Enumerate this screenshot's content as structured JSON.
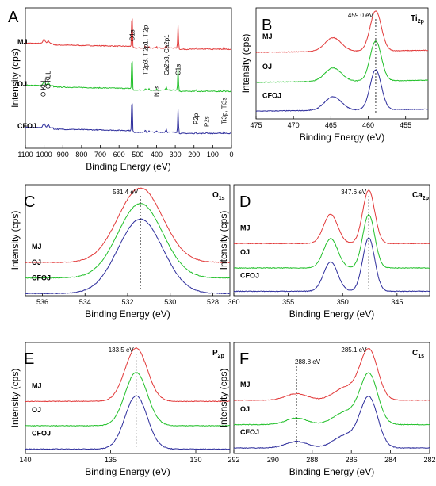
{
  "colors": {
    "MJ": "#e23a3a",
    "OJ": "#22c02a",
    "CFOJ": "#2d2d9c"
  },
  "chart_data": [
    {
      "type": "line",
      "panel": "A",
      "xlabel": "Binding Energy (eV)",
      "ylabel": "Intensity (cps)",
      "xlim": [
        1100,
        0
      ],
      "xticks": [
        "1100",
        "1000",
        "900",
        "800",
        "700",
        "600",
        "500",
        "400",
        "300",
        "200",
        "100",
        "0"
      ],
      "xtick_values": [
        1100,
        1000,
        900,
        800,
        700,
        600,
        500,
        400,
        300,
        200,
        100,
        0
      ],
      "series_labels": [
        "MJ",
        "OJ",
        "CFOJ"
      ],
      "annotations": [
        {
          "text": "O KLL",
          "x": 1005
        },
        {
          "text": "O KLL",
          "x": 980
        },
        {
          "text": "O1s",
          "x": 531
        },
        {
          "text": "Ti2p3, Ti2p1, Ti2p",
          "x": 459
        },
        {
          "text": "N1s",
          "x": 400
        },
        {
          "text": "Ca2p3, Ca2p1",
          "x": 347
        },
        {
          "text": "C1s",
          "x": 285
        },
        {
          "text": "P2p",
          "x": 190
        },
        {
          "text": "P2s",
          "x": 133
        },
        {
          "text": "Ti3p, Ti3s",
          "x": 40
        }
      ]
    },
    {
      "type": "line",
      "panel": "B",
      "element_label": {
        "base": "Ti",
        "sub": "2p"
      },
      "xlabel": "Binding Energy (eV)",
      "ylabel": "Intensity (cps)",
      "xlim": [
        475,
        452
      ],
      "xticks": [
        "475",
        "470",
        "465",
        "460",
        "455"
      ],
      "xtick_values": [
        475,
        470,
        465,
        460,
        455
      ],
      "series_labels": [
        "MJ",
        "OJ",
        "CFOJ"
      ],
      "peak_label": "459.0 eV",
      "peak_position": 459.0,
      "peaks": [
        {
          "center": 459.0,
          "height": 1.0,
          "width": 0.75
        },
        {
          "center": 464.7,
          "height": 0.34,
          "width": 1.1
        }
      ],
      "baseline_slope": 0.05
    },
    {
      "type": "line",
      "panel": "C",
      "element_label": {
        "base": "O",
        "sub": "1s"
      },
      "xlabel": "Binding Energy (eV)",
      "ylabel": "Intensity (cps)",
      "xlim": [
        536.8,
        527.2
      ],
      "xticks": [
        "536",
        "534",
        "532",
        "530",
        "528"
      ],
      "xtick_values": [
        536,
        534,
        532,
        530,
        528
      ],
      "series_labels": [
        "MJ",
        "OJ",
        "CFOJ"
      ],
      "peak_label": "531.4 eV",
      "peak_position": 531.4,
      "peaks": [
        {
          "center": 531.4,
          "height": 1.0,
          "width": 1.05
        }
      ],
      "baseline_slope": 0.0
    },
    {
      "type": "line",
      "panel": "D",
      "element_label": {
        "base": "Ca",
        "sub": "2p"
      },
      "xlabel": "Binding Energy (eV)",
      "ylabel": "Intensity (cps)",
      "xlim": [
        360,
        342
      ],
      "xticks": [
        "360",
        "355",
        "350",
        "345"
      ],
      "xtick_values": [
        360,
        355,
        350,
        345
      ],
      "series_labels": [
        "MJ",
        "OJ",
        "CFOJ"
      ],
      "peak_label": "347.6 eV",
      "peak_position": 347.6,
      "peaks": [
        {
          "center": 347.6,
          "height": 1.0,
          "width": 0.55
        },
        {
          "center": 351.1,
          "height": 0.55,
          "width": 0.65
        }
      ],
      "baseline_slope": 0.0
    },
    {
      "type": "line",
      "panel": "E",
      "element_label": {
        "base": "P",
        "sub": "2p"
      },
      "xlabel": "Binding Energy (eV)",
      "ylabel": "Intensity (cps)",
      "xlim": [
        140,
        128
      ],
      "xticks": [
        "140",
        "135",
        "130"
      ],
      "xtick_values": [
        140,
        135,
        130
      ],
      "series_labels": [
        "MJ",
        "OJ",
        "CFOJ"
      ],
      "peak_label": "133.5 eV",
      "peak_position": 133.5,
      "peaks": [
        {
          "center": 133.5,
          "height": 1.0,
          "width": 0.65
        }
      ],
      "baseline_slope": 0.0
    },
    {
      "type": "line",
      "panel": "F",
      "element_label": {
        "base": "C",
        "sub": "1s"
      },
      "xlabel": "Binding Energy (eV)",
      "ylabel": "Intensity (cps)",
      "xlim": [
        292,
        282
      ],
      "xticks": [
        "292",
        "290",
        "288",
        "286",
        "284",
        "282"
      ],
      "xtick_values": [
        292,
        290,
        288,
        286,
        284,
        282
      ],
      "series_labels": [
        "MJ",
        "OJ",
        "CFOJ"
      ],
      "peak_label": "285.1 eV",
      "peak_position": 285.1,
      "second_peak_label": "288.8 eV",
      "second_peak_position": 288.8,
      "peaks": [
        {
          "center": 285.1,
          "height": 1.0,
          "width": 0.45
        },
        {
          "center": 286.3,
          "height": 0.25,
          "width": 0.6
        },
        {
          "center": 288.8,
          "height": 0.13,
          "width": 0.55
        }
      ],
      "baseline_slope": 0.0
    }
  ]
}
